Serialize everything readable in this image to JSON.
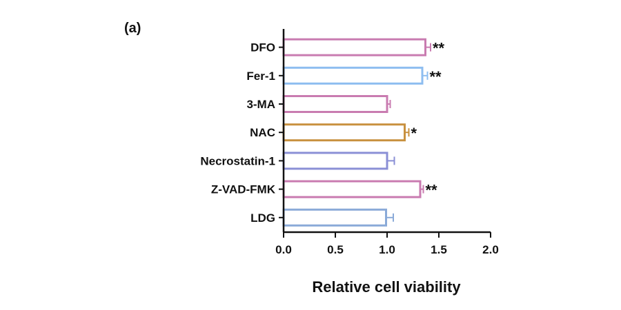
{
  "panel_label": "(a)",
  "chart_data": {
    "type": "bar",
    "orientation": "horizontal",
    "title": "",
    "xlabel": "Relative cell viability",
    "ylabel": "",
    "xlim": [
      0.0,
      2.0
    ],
    "x_ticks": [
      "0.0",
      "0.5",
      "1.0",
      "1.5",
      "2.0"
    ],
    "x_tick_values": [
      0.0,
      0.5,
      1.0,
      1.5,
      2.0
    ],
    "categories": [
      "DFO",
      "Fer-1",
      "3-MA",
      "NAC",
      "Necrostatin-1",
      "Z-VAD-FMK",
      "LDG"
    ],
    "values": [
      1.37,
      1.34,
      1.0,
      1.17,
      1.0,
      1.32,
      0.99
    ],
    "errors": [
      0.05,
      0.05,
      0.03,
      0.04,
      0.07,
      0.03,
      0.07
    ],
    "significance": [
      "**",
      "**",
      "",
      "*",
      "",
      "**",
      ""
    ],
    "colors": [
      "#c97bb0",
      "#8dbdf0",
      "#c97bb0",
      "#c8913f",
      "#8a8fd6",
      "#c97bb0",
      "#8aaad8"
    ],
    "bar_fill": "#ffffff",
    "grid": false,
    "legend": "none"
  }
}
